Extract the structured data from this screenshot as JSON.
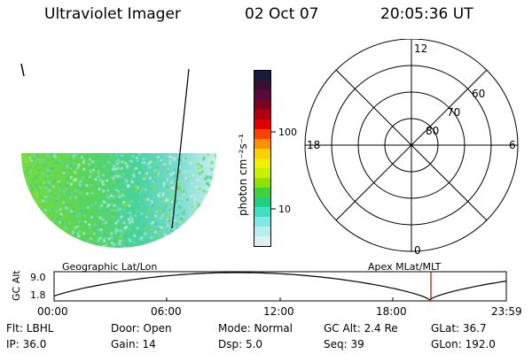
{
  "header": {
    "instrument": "Ultraviolet Imager",
    "date": "02 Oct 07",
    "time": "20:05:36 UT"
  },
  "colorbar": {
    "unit_label": "photon cm⁻²s⁻¹",
    "tick_labels": [
      "100",
      "10"
    ],
    "colors": [
      "#1a1a3a",
      "#3a1030",
      "#5a0a3a",
      "#800020",
      "#b00010",
      "#e00000",
      "#ff4000",
      "#ff9000",
      "#ffd000",
      "#f0f000",
      "#c8f000",
      "#90e000",
      "#40d040",
      "#20d080",
      "#40e0c0",
      "#80e8e8",
      "#b8eef0",
      "#e0f0f0"
    ]
  },
  "polar": {
    "mlt_labels": {
      "top": "12",
      "left": "18",
      "right": "6",
      "bottom": "0"
    },
    "lat_labels": [
      "60",
      "70",
      "80"
    ]
  },
  "plot": {
    "title_left": "Geographic Lat/Lon",
    "title_right": "Apex MLat/MLT",
    "ylabel": "GC Alt",
    "yticks": [
      "9.0",
      "1.8"
    ],
    "xticks": [
      "00:00",
      "06:00",
      "12:00",
      "18:00",
      "23:59"
    ]
  },
  "info": {
    "row1": {
      "flt": "Flt: LBHL",
      "door": "Door: Open",
      "mode": "Mode: Normal",
      "gcalt": "GC Alt: 2.4 Re",
      "glat": "GLat:  36.7"
    },
    "row2": {
      "ip": "IP: 36.0",
      "gain": "Gain: 14",
      "dsp": "Dsp:    5.0",
      "seq": "Seq: 39",
      "glon": "GLon: 192.0"
    }
  }
}
